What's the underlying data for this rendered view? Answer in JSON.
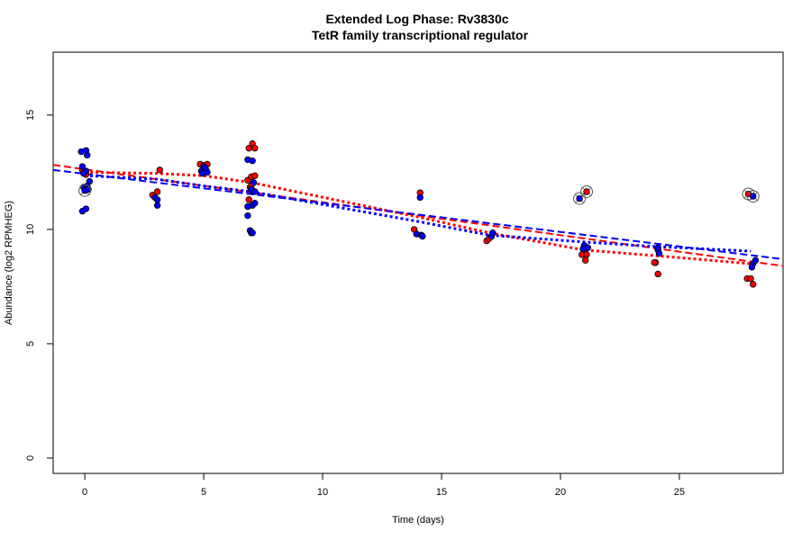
{
  "chart_data": {
    "type": "scatter",
    "title": "Extended Log Phase:      Rv3830c",
    "subtitle": "TetR family transcriptional regulator",
    "xlabel": "Time  (days)",
    "ylabel": "Abundance  (log2 RPMHEG)",
    "xlim": [
      -1.33,
      29.36
    ],
    "ylim": [
      -0.67,
      17.75
    ],
    "xticks": [
      0,
      5,
      10,
      15,
      20,
      25
    ],
    "yticks": [
      0,
      5,
      10,
      15
    ],
    "grid": false,
    "colors": {
      "red": "#ff0000",
      "blue": "#0000ff",
      "circle": "#555555"
    },
    "series": [
      {
        "color": "#ff0000",
        "points": [
          [
            -0.1,
            12.6
          ],
          [
            0.05,
            12.4
          ],
          [
            0.1,
            11.8
          ],
          [
            2.85,
            11.5
          ],
          [
            3.05,
            11.65
          ],
          [
            3.15,
            12.6
          ],
          [
            4.85,
            12.85
          ],
          [
            5.0,
            12.8
          ],
          [
            5.15,
            12.85
          ],
          [
            5.05,
            12.55
          ],
          [
            7.05,
            13.75
          ],
          [
            6.9,
            13.55
          ],
          [
            7.15,
            13.55
          ],
          [
            6.85,
            12.15
          ],
          [
            7.0,
            12.3
          ],
          [
            7.15,
            12.35
          ],
          [
            6.95,
            11.85
          ],
          [
            7.05,
            11.7
          ],
          [
            6.9,
            11.3
          ],
          [
            7.0,
            11.9
          ],
          [
            14.1,
            11.6
          ],
          [
            13.85,
            10.0
          ],
          [
            16.9,
            9.5
          ],
          [
            17.0,
            9.6
          ],
          [
            17.1,
            9.7
          ],
          [
            20.9,
            8.9
          ],
          [
            21.1,
            8.9
          ],
          [
            21.05,
            8.65
          ],
          [
            24.0,
            8.55
          ],
          [
            24.1,
            8.05
          ],
          [
            23.95,
            8.55
          ],
          [
            27.85,
            7.85
          ],
          [
            28.0,
            7.85
          ],
          [
            28.1,
            7.6
          ]
        ],
        "circled_points": [
          [
            21.1,
            11.65
          ],
          [
            27.9,
            11.55
          ]
        ],
        "trend_dashed": [
          [
            -1.33,
            12.82
          ],
          [
            29.36,
            8.4
          ]
        ],
        "trend_dotted": [
          [
            0,
            12.5
          ],
          [
            3,
            12.45
          ],
          [
            5,
            12.35
          ],
          [
            7,
            12.05
          ],
          [
            14,
            10.55
          ],
          [
            17,
            9.85
          ],
          [
            21,
            9.1
          ],
          [
            24,
            8.85
          ],
          [
            28,
            8.5
          ]
        ]
      },
      {
        "color": "#0000ff",
        "points": [
          [
            -0.15,
            13.4
          ],
          [
            0.05,
            13.45
          ],
          [
            0.1,
            13.25
          ],
          [
            -0.1,
            12.75
          ],
          [
            0.05,
            12.55
          ],
          [
            -0.05,
            12.45
          ],
          [
            0.2,
            12.1
          ],
          [
            -0.05,
            11.85
          ],
          [
            0.1,
            11.9
          ],
          [
            0.15,
            11.75
          ],
          [
            -0.1,
            10.8
          ],
          [
            0.05,
            10.9
          ],
          [
            2.95,
            11.4
          ],
          [
            3.05,
            11.3
          ],
          [
            3.05,
            11.05
          ],
          [
            4.9,
            12.55
          ],
          [
            5.0,
            12.75
          ],
          [
            5.1,
            12.6
          ],
          [
            4.95,
            12.45
          ],
          [
            5.15,
            12.5
          ],
          [
            5.05,
            12.7
          ],
          [
            6.85,
            13.05
          ],
          [
            7.05,
            13.0
          ],
          [
            6.85,
            11.0
          ],
          [
            7.05,
            11.05
          ],
          [
            7.15,
            11.15
          ],
          [
            6.85,
            10.6
          ],
          [
            6.95,
            9.95
          ],
          [
            7.0,
            9.85
          ],
          [
            7.05,
            9.85
          ],
          [
            7.1,
            12.05
          ],
          [
            7.0,
            11.75
          ],
          [
            7.15,
            11.65
          ],
          [
            14.1,
            11.4
          ],
          [
            13.95,
            9.8
          ],
          [
            14.15,
            9.75
          ],
          [
            14.2,
            9.7
          ],
          [
            17.1,
            9.7
          ],
          [
            17.15,
            9.85
          ],
          [
            21.0,
            9.3
          ],
          [
            21.15,
            9.2
          ],
          [
            20.95,
            9.15
          ],
          [
            24.1,
            9.1
          ],
          [
            24.15,
            8.95
          ],
          [
            24.1,
            9.2
          ],
          [
            28.1,
            8.5
          ],
          [
            28.2,
            8.65
          ],
          [
            28.05,
            8.35
          ]
        ],
        "circled_points": [
          [
            0.0,
            11.7
          ],
          [
            20.8,
            11.35
          ],
          [
            28.1,
            11.45
          ]
        ],
        "trend_dashed": [
          [
            -1.33,
            12.6
          ],
          [
            29.36,
            8.7
          ]
        ],
        "trend_dotted": [
          [
            0,
            12.35
          ],
          [
            3,
            12.2
          ],
          [
            5,
            11.9
          ],
          [
            7,
            11.65
          ],
          [
            14,
            10.35
          ],
          [
            17,
            9.75
          ],
          [
            21,
            9.45
          ],
          [
            24,
            9.25
          ],
          [
            28,
            9.05
          ]
        ]
      }
    ]
  }
}
